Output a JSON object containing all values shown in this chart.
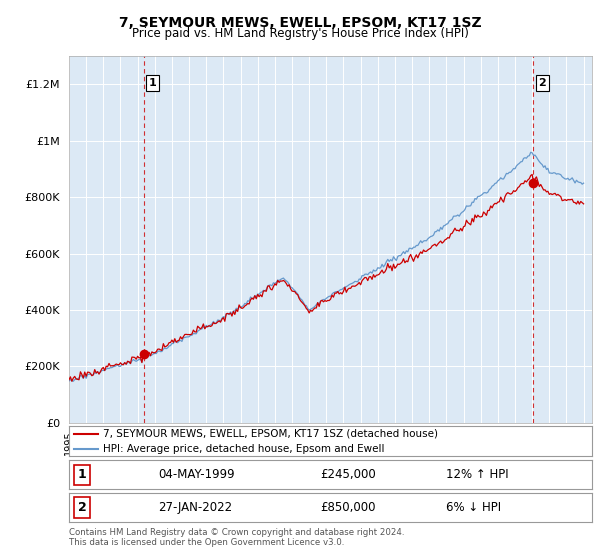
{
  "title": "7, SEYMOUR MEWS, EWELL, EPSOM, KT17 1SZ",
  "subtitle": "Price paid vs. HM Land Registry's House Price Index (HPI)",
  "legend_line1": "7, SEYMOUR MEWS, EWELL, EPSOM, KT17 1SZ (detached house)",
  "legend_line2": "HPI: Average price, detached house, Epsom and Ewell",
  "sale1_label": "1",
  "sale1_date": "04-MAY-1999",
  "sale1_price": "£245,000",
  "sale1_hpi": "12% ↑ HPI",
  "sale2_label": "2",
  "sale2_date": "27-JAN-2022",
  "sale2_price": "£850,000",
  "sale2_hpi": "6% ↓ HPI",
  "footer": "Contains HM Land Registry data © Crown copyright and database right 2024.\nThis data is licensed under the Open Government Licence v3.0.",
  "sale_color": "#cc0000",
  "hpi_color": "#6699cc",
  "chart_bg": "#dce9f5",
  "background_color": "#ffffff",
  "grid_color": "#ffffff",
  "ylim": [
    0,
    1300000
  ],
  "xlim_start": 1995.0,
  "xlim_end": 2025.5,
  "sale1_x": 1999.35,
  "sale1_y": 245000,
  "sale2_x": 2022.07,
  "sale2_y": 850000,
  "yticks": [
    0,
    200000,
    400000,
    600000,
    800000,
    1000000,
    1200000
  ],
  "ytick_labels": [
    "£0",
    "£200K",
    "£400K",
    "£600K",
    "£800K",
    "£1M",
    "£1.2M"
  ]
}
